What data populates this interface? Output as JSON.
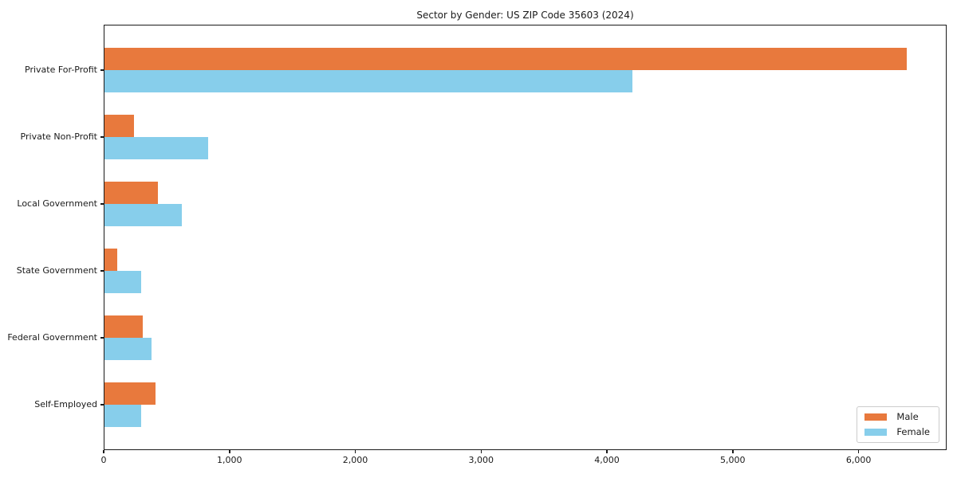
{
  "title": "Sector by Gender: US ZIP Code 35603 (2024)",
  "colors": {
    "male": "#e8793d",
    "female": "#87ceeb",
    "spine": "#1a1a1a",
    "text": "#1a1a1a",
    "legend_border": "#cccccc",
    "background": "#ffffff"
  },
  "legend": {
    "position": "lower right",
    "items": [
      {
        "label": "Male",
        "color": "#e8793d"
      },
      {
        "label": "Female",
        "color": "#87ceeb"
      }
    ]
  },
  "chart_data": {
    "type": "bar",
    "orientation": "horizontal",
    "title": "Sector by Gender: US ZIP Code 35603 (2024)",
    "xlabel": "",
    "ylabel": "",
    "categories": [
      "Private For-Profit",
      "Private Non-Profit",
      "Local Government",
      "State Government",
      "Federal Government",
      "Self-Employed"
    ],
    "series": [
      {
        "name": "Male",
        "color": "#e8793d",
        "values": [
          6380,
          240,
          430,
          110,
          310,
          410
        ]
      },
      {
        "name": "Female",
        "color": "#87ceeb",
        "values": [
          4200,
          830,
          620,
          300,
          380,
          300
        ]
      }
    ],
    "xlim": [
      0,
      6700
    ],
    "xticks": [
      0,
      1000,
      2000,
      3000,
      4000,
      5000,
      6000
    ],
    "xtick_labels": [
      "0",
      "1,000",
      "2,000",
      "3,000",
      "4,000",
      "5,000",
      "6,000"
    ],
    "grid": false,
    "legend_position": "lower right"
  }
}
